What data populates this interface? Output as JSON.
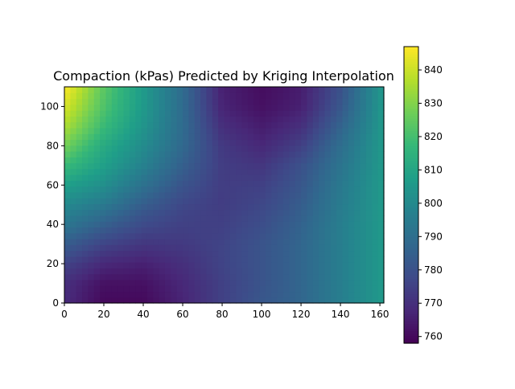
{
  "chart_data": {
    "type": "heatmap",
    "title": "Compaction (kPas) Predicted by Kriging Interpolation",
    "xlabel": "",
    "ylabel": "",
    "xlim": [
      0,
      162
    ],
    "ylim": [
      0,
      110
    ],
    "x_ticks": [
      0,
      20,
      40,
      60,
      80,
      100,
      120,
      140,
      160
    ],
    "y_ticks": [
      0,
      20,
      40,
      60,
      80,
      100
    ],
    "colormap": "viridis",
    "colorbar": {
      "range": [
        758,
        847
      ],
      "ticks": [
        760,
        770,
        780,
        790,
        800,
        810,
        820,
        830,
        840
      ],
      "placement": "right"
    },
    "grid": false,
    "x": [
      0,
      20,
      40,
      60,
      80,
      100,
      120,
      140,
      162
    ],
    "y": [
      0,
      10,
      20,
      30,
      40,
      50,
      60,
      70,
      80,
      90,
      100,
      110
    ],
    "z": [
      [
        769,
        760,
        760,
        767,
        775,
        782,
        787,
        796,
        806
      ],
      [
        770,
        762,
        762,
        768,
        775,
        781,
        787,
        796,
        806
      ],
      [
        776,
        768,
        766,
        770,
        776,
        781,
        787,
        796,
        806
      ],
      [
        784,
        776,
        772,
        773,
        776,
        781,
        787,
        796,
        806
      ],
      [
        793,
        785,
        778,
        775,
        775,
        779,
        786,
        796,
        806
      ],
      [
        800,
        794,
        784,
        777,
        774,
        777,
        784,
        795,
        806
      ],
      [
        808,
        802,
        791,
        781,
        774,
        775,
        782,
        794,
        806
      ],
      [
        818,
        808,
        797,
        785,
        774,
        772,
        780,
        792,
        806
      ],
      [
        828,
        812,
        801,
        788,
        773,
        768,
        775,
        790,
        806
      ],
      [
        836,
        818,
        804,
        789,
        770,
        765,
        770,
        786,
        806
      ],
      [
        842,
        822,
        806,
        789,
        767,
        762,
        766,
        782,
        806
      ],
      [
        847,
        824,
        806,
        789,
        766,
        761,
        765,
        780,
        806
      ]
    ]
  }
}
